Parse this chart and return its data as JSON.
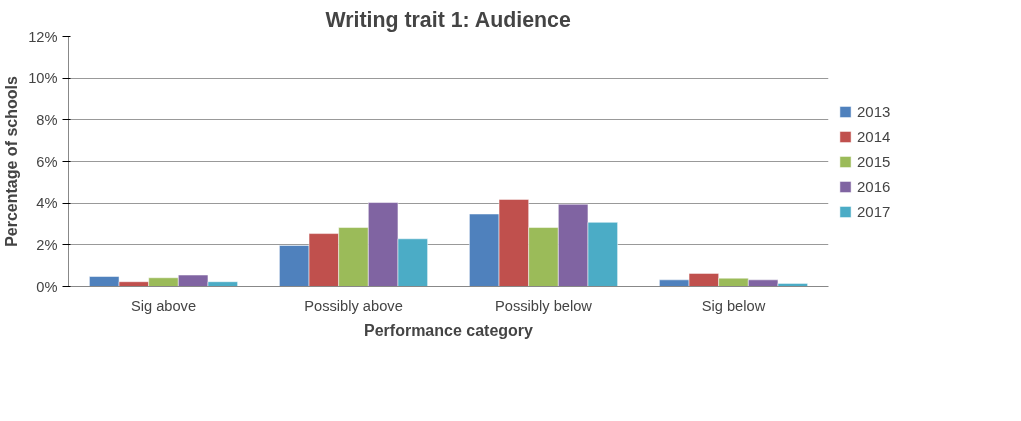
{
  "chart_data": {
    "type": "bar",
    "title": "Writing trait 1: Audience",
    "xlabel": "Performance category",
    "ylabel": "Percentage of schools",
    "categories": [
      "Sig above",
      "Possibly above",
      "Possibly below",
      "Sig below"
    ],
    "series": [
      {
        "name": "2013",
        "color": "#4f81bd",
        "values": [
          0.48,
          1.97,
          3.48,
          0.32
        ]
      },
      {
        "name": "2014",
        "color": "#c0504d",
        "values": [
          0.23,
          2.54,
          4.18,
          0.63
        ]
      },
      {
        "name": "2015",
        "color": "#9bbb59",
        "values": [
          0.42,
          2.83,
          2.83,
          0.4
        ]
      },
      {
        "name": "2016",
        "color": "#8064a2",
        "values": [
          0.55,
          4.03,
          3.95,
          0.32
        ]
      },
      {
        "name": "2017",
        "color": "#4bacc6",
        "values": [
          0.23,
          2.29,
          3.08,
          0.15
        ]
      }
    ],
    "ylim": [
      0,
      12
    ],
    "yticks": [
      {
        "value": 0,
        "label": "0%"
      },
      {
        "value": 2,
        "label": "2%"
      },
      {
        "value": 4,
        "label": "4%"
      },
      {
        "value": 6,
        "label": "6%"
      },
      {
        "value": 8,
        "label": "8%"
      },
      {
        "value": 10,
        "label": "10%"
      },
      {
        "value": 12,
        "label": "12%"
      }
    ],
    "grid": "y",
    "legend": "right"
  }
}
